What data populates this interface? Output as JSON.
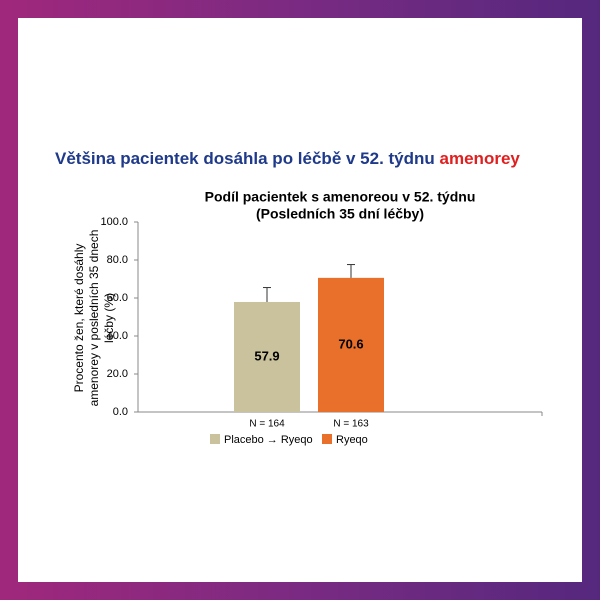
{
  "header": {
    "text": "Většina pacientek dosáhla po léčbě v 52. týdnu",
    "highlight": "amenorey"
  },
  "chart_data": {
    "type": "bar",
    "title": "Podíl pacientek s amenoreou v 52. týdnu",
    "subtitle": "(Posledních 35 dní léčby)",
    "ylabel": [
      "Procento žen, které dosáhly",
      "amenorey v posledních 35 dnech",
      "léčby (%)"
    ],
    "categories": [
      "N = 164",
      "N = 163"
    ],
    "series": [
      {
        "name": "Placebo → Ryeqo",
        "color": "#c9c29c",
        "values": [
          57.9,
          null
        ],
        "errors": [
          7.6,
          null
        ]
      },
      {
        "name": "Ryeqo",
        "color": "#e8702a",
        "values": [
          null,
          70.6
        ],
        "errors": [
          null,
          7.0
        ]
      }
    ],
    "ylim": [
      0,
      100
    ],
    "yticks": [
      {
        "value": 0,
        "label": "0.0"
      },
      {
        "value": 20,
        "label": "20.0"
      },
      {
        "value": 40,
        "label": "40.0"
      },
      {
        "value": 60,
        "label": "60.0"
      },
      {
        "value": 80,
        "label": "80.0"
      },
      {
        "value": 100,
        "label": "100.0"
      }
    ],
    "grid": false
  }
}
